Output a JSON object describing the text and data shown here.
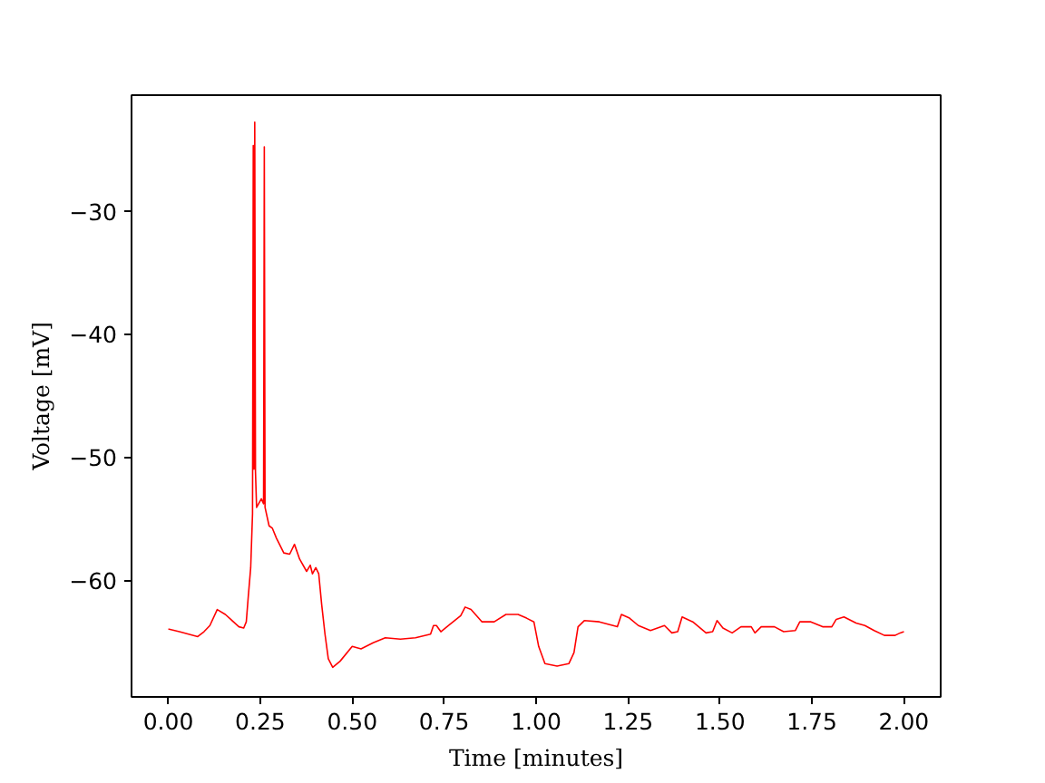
{
  "chart_data": {
    "type": "line",
    "xlabel": "Time [minutes]",
    "ylabel": "Voltage [mV]",
    "color": "#ff0000",
    "line_style": "solid",
    "x": [
      0.0,
      0.002,
      0.03,
      0.08,
      0.097,
      0.113,
      0.133,
      0.155,
      0.192,
      0.205,
      0.212,
      0.217,
      0.224,
      0.229,
      0.231,
      0.233,
      0.235,
      0.237,
      0.24,
      0.253,
      0.259,
      0.261,
      0.263,
      0.274,
      0.283,
      0.294,
      0.314,
      0.33,
      0.343,
      0.357,
      0.376,
      0.386,
      0.392,
      0.401,
      0.409,
      0.417,
      0.426,
      0.435,
      0.447,
      0.467,
      0.5,
      0.524,
      0.557,
      0.59,
      0.631,
      0.672,
      0.713,
      0.721,
      0.729,
      0.741,
      0.762,
      0.795,
      0.807,
      0.823,
      0.853,
      0.886,
      0.918,
      0.951,
      0.974,
      0.994,
      1.007,
      1.024,
      1.057,
      1.089,
      1.103,
      1.114,
      1.131,
      1.172,
      1.221,
      1.232,
      1.254,
      1.278,
      1.311,
      1.349,
      1.369,
      1.385,
      1.397,
      1.426,
      1.462,
      1.48,
      1.492,
      1.508,
      1.533,
      1.557,
      1.585,
      1.595,
      1.612,
      1.648,
      1.673,
      1.705,
      1.717,
      1.747,
      1.779,
      1.804,
      1.816,
      1.837,
      1.87,
      1.894,
      1.919,
      1.947,
      1.976,
      1.99,
      2.0
    ],
    "values": [
      -64.0,
      -64.0,
      -64.2,
      -64.6,
      -64.2,
      -63.7,
      -62.4,
      -62.8,
      -63.8,
      -63.9,
      -63.4,
      -61.5,
      -59.0,
      -54.6,
      -24.7,
      -51.0,
      -22.8,
      -51.2,
      -54.1,
      -53.4,
      -53.8,
      -24.8,
      -54.1,
      -55.6,
      -55.8,
      -56.6,
      -57.8,
      -57.9,
      -57.1,
      -58.3,
      -59.3,
      -58.8,
      -59.5,
      -59.0,
      -59.5,
      -62.0,
      -64.4,
      -66.4,
      -67.1,
      -66.6,
      -65.4,
      -65.6,
      -65.1,
      -64.7,
      -64.8,
      -64.7,
      -64.4,
      -63.7,
      -63.7,
      -64.2,
      -63.7,
      -62.9,
      -62.2,
      -62.4,
      -63.4,
      -63.4,
      -62.8,
      -62.8,
      -63.1,
      -63.4,
      -65.4,
      -66.8,
      -67.0,
      -66.8,
      -65.9,
      -63.8,
      -63.3,
      -63.4,
      -63.8,
      -62.8,
      -63.1,
      -63.7,
      -64.1,
      -63.7,
      -64.3,
      -64.2,
      -63.0,
      -63.4,
      -64.3,
      -64.2,
      -63.3,
      -63.9,
      -64.3,
      -63.8,
      -63.8,
      -64.3,
      -63.8,
      -63.8,
      -64.2,
      -64.1,
      -63.4,
      -63.4,
      -63.8,
      -63.8,
      -63.2,
      -63.0,
      -63.5,
      -63.7,
      -64.1,
      -64.5,
      -64.5,
      -64.3,
      -64.2
    ],
    "xlim": [
      -0.1,
      2.1
    ],
    "ylim": [
      -69.5,
      -20.6
    ],
    "xticks": [
      {
        "value": 0,
        "label": "0.00"
      },
      {
        "value": 0.25,
        "label": "0.25"
      },
      {
        "value": 0.5,
        "label": "0.50"
      },
      {
        "value": 0.75,
        "label": "0.75"
      },
      {
        "value": 1,
        "label": "1.00"
      },
      {
        "value": 1.25,
        "label": "1.25"
      },
      {
        "value": 1.5,
        "label": "1.50"
      },
      {
        "value": 1.75,
        "label": "1.75"
      },
      {
        "value": 2,
        "label": "2.00"
      }
    ],
    "yticks": [
      {
        "value": -60,
        "label": "−60"
      },
      {
        "value": -50,
        "label": "−50"
      },
      {
        "value": -40,
        "label": "−40"
      },
      {
        "value": -30,
        "label": "−30"
      }
    ]
  }
}
